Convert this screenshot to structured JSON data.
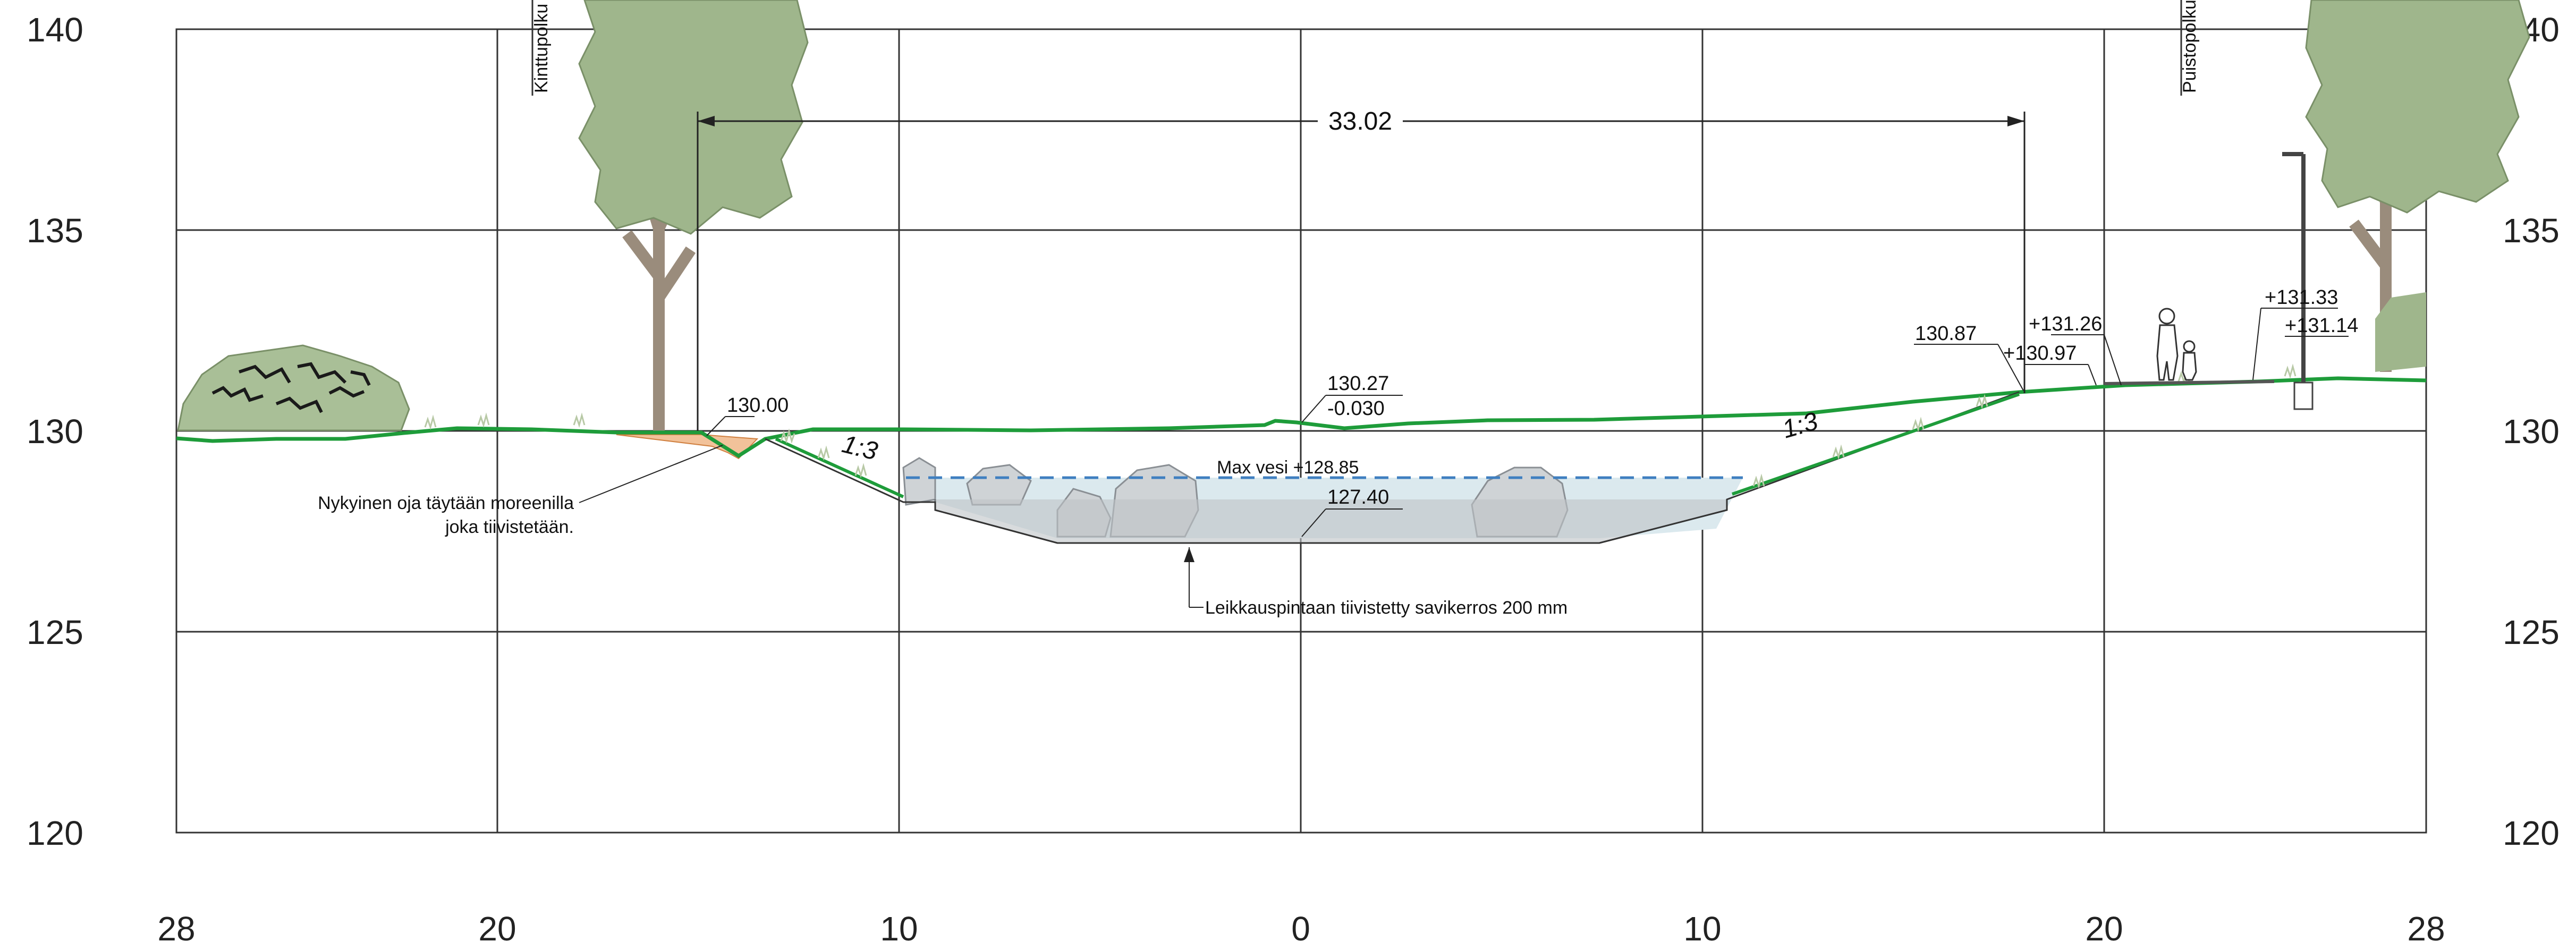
{
  "section": {
    "y_labels": [
      "140",
      "135",
      "130",
      "125",
      "120"
    ],
    "x_labels": [
      "28",
      "20",
      "10",
      "0",
      "10",
      "20",
      "28"
    ],
    "path_left": "Kinttupolku",
    "path_right": "Puistopolku",
    "dimension": "33.02",
    "elevations": {
      "left_ditch": "130.00",
      "center_top": "130.27",
      "center_slope": "-0.030",
      "bottom": "127.40",
      "right_edge": "130.87",
      "right_a": "+131.26",
      "right_b": "+130.97",
      "far_a": "+131.33",
      "far_b": "+131.14"
    },
    "max_water": "Max vesi +128.85",
    "slope_ratio": "1:3",
    "note_ditch_line1": "Nykyinen oja täytään moreenilla",
    "note_ditch_line2": "joka tiivistetään.",
    "note_clay": "Leikkauspintaan tiivistetty savikerros 200 mm"
  },
  "colors": {
    "terrain": "#1e9c3a",
    "water": "#dbe9ee",
    "water_line": "#3f7fc0",
    "tree": "#9fb68c",
    "trunk": "#9a8c7c",
    "stone": "#cfd3d6",
    "grass": "#b8c9a6"
  }
}
